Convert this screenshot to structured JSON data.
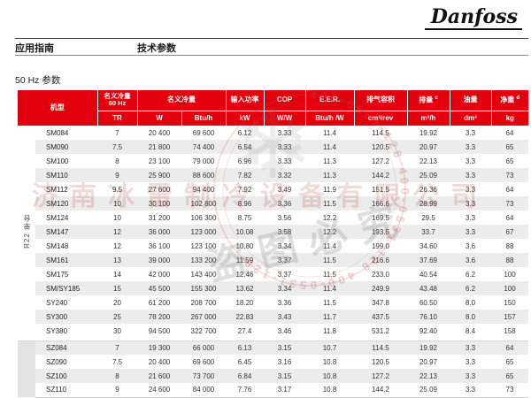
{
  "page": {
    "logo_text": "Danfoss",
    "nav": {
      "left": "应用指南",
      "right": "技术参数"
    },
    "section_title": "50 Hz 参数"
  },
  "colors": {
    "danfoss_red": "#E2000F",
    "stripe_gray": "#ECECEC",
    "sz_group_gray": "#E3E3E3"
  },
  "table": {
    "columns": [
      {
        "label": "机型"
      },
      {
        "label": "名义冷量",
        "label2": "60 Hz",
        "unit": "TR"
      },
      {
        "label": "名义冷量",
        "units": [
          "W",
          "Btu/h"
        ]
      },
      {
        "label": "输入功率",
        "unit": "kW"
      },
      {
        "label": "COP",
        "unit": "W/W"
      },
      {
        "label": "E.E.R.",
        "unit": "Btu/h /W"
      },
      {
        "label": "排气容积",
        "unit": "cm³/rev"
      },
      {
        "label": "排量",
        "sup": "c",
        "unit": "m³/h"
      },
      {
        "label": "油量",
        "unit": "dm³"
      },
      {
        "label": "净重",
        "sup": "d",
        "unit": "kg"
      }
    ],
    "sections": [
      {
        "label": "R22 单台",
        "rows": [
          [
            "SM084",
            "7",
            "20 400",
            "69 600",
            "6.12",
            "3.33",
            "11.4",
            "114.5",
            "19.92",
            "3.3",
            "64"
          ],
          [
            "SM090",
            "7.5",
            "21 800",
            "74 400",
            "6.54",
            "3.33",
            "11.4",
            "120.5",
            "20.97",
            "3.3",
            "65"
          ],
          [
            "SM100",
            "8",
            "23 100",
            "79 000",
            "6.96",
            "3.33",
            "11.3",
            "127.2",
            "22.13",
            "3.3",
            "65"
          ],
          [
            "SM110",
            "9",
            "25 900",
            "88 600",
            "7.82",
            "3.32",
            "11.3",
            "144.2",
            "25.09",
            "3.3",
            "73"
          ],
          [
            "SM112",
            "9.5",
            "27 600",
            "94 400",
            "7.92",
            "3.49",
            "11.9",
            "151.5",
            "26.36",
            "3.3",
            "64"
          ],
          [
            "SM120",
            "10",
            "30 100",
            "102 800",
            "8.96",
            "3.36",
            "11.5",
            "166.6",
            "28.99",
            "3.3",
            "73"
          ],
          [
            "SM124",
            "10",
            "31 200",
            "106 300",
            "8.75",
            "3.56",
            "12.2",
            "169.5",
            "29.5",
            "3.3",
            "64"
          ],
          [
            "SM147",
            "12",
            "36 000",
            "123 000",
            "10.08",
            "3.58",
            "12.2",
            "193.5",
            "33.7",
            "3.3",
            "67"
          ],
          [
            "SM148",
            "12",
            "36 100",
            "123 100",
            "10.80",
            "3.34",
            "11.4",
            "199.0",
            "34.60",
            "3.6",
            "88"
          ],
          [
            "SM161",
            "13",
            "39 000",
            "133 200",
            "11.59",
            "3.37",
            "11.5",
            "216.6",
            "37.69",
            "3.6",
            "88"
          ],
          [
            "SM175",
            "14",
            "42 000",
            "143 400",
            "12.46",
            "3.37",
            "11.5",
            "233.0",
            "40.54",
            "6.2",
            "100"
          ],
          [
            "SM/SY185",
            "15",
            "45 500",
            "155 300",
            "13.62",
            "3.34",
            "11.4",
            "249.9",
            "43.48",
            "6.2",
            "100"
          ],
          [
            "SY240",
            "20",
            "61 200",
            "208 700",
            "18.20",
            "3.36",
            "11.5",
            "347.8",
            "60.50",
            "8.0",
            "150"
          ],
          [
            "SY300",
            "25",
            "78 200",
            "267 000",
            "22.83",
            "3.43",
            "11.7",
            "437.5",
            "76.10",
            "8.0",
            "157"
          ],
          [
            "SY380",
            "30",
            "94 500",
            "322 700",
            "27.4",
            "3.46",
            "11.8",
            "531.2",
            "92.40",
            "8.4",
            "158"
          ]
        ]
      },
      {
        "label": "",
        "rows": [
          [
            "SZ084",
            "7",
            "19 300",
            "66 000",
            "6.13",
            "3.15",
            "10.7",
            "114.5",
            "19.92",
            "3.3",
            "64"
          ],
          [
            "SZ090",
            "7.5",
            "20 400",
            "69 600",
            "6.45",
            "3.16",
            "10.8",
            "120.5",
            "20.97",
            "3.3",
            "65"
          ],
          [
            "SZ100",
            "8",
            "21 600",
            "73 700",
            "6.84",
            "3.15",
            "10.8",
            "127.2",
            "22.13",
            "3.3",
            "65"
          ],
          [
            "SZ110",
            "9",
            "24 600",
            "84 000",
            "7.76",
            "3.17",
            "10.8",
            "144.2",
            "25.09",
            "3.3",
            "73"
          ]
        ]
      }
    ]
  },
  "watermark": {
    "company": "济南冰雷制冷设备有限公司",
    "phone": "400-0531-128",
    "notice": "盗图必究",
    "snowflake_glyph": "❄"
  }
}
